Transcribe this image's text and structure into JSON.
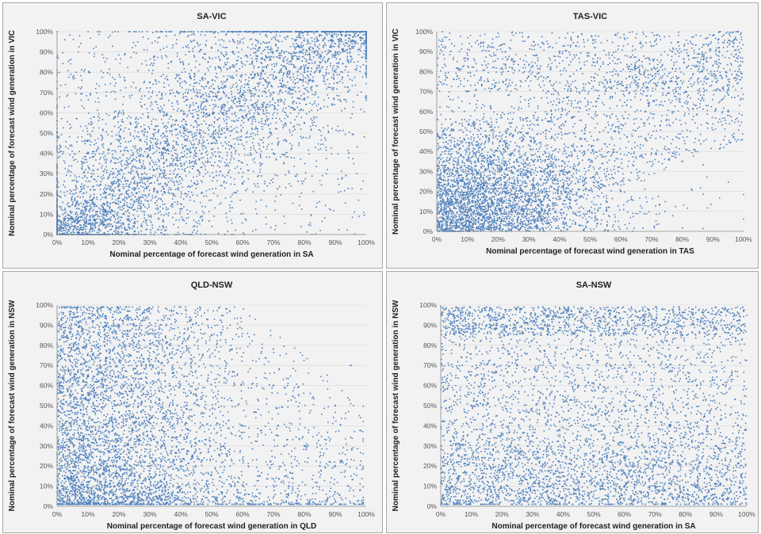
{
  "chart_data": [
    {
      "type": "scatter",
      "title": "SA-VIC",
      "xlabel": "Nominal percentage of forecast wind generation in SA",
      "ylabel": "Nominal percentage of forecast wind generation in VIC",
      "xlim": [
        0,
        100
      ],
      "ylim": [
        0,
        100
      ],
      "x_ticks": [
        "0%",
        "10%",
        "20%",
        "30%",
        "40%",
        "50%",
        "60%",
        "70%",
        "80%",
        "90%",
        "100%"
      ],
      "y_ticks": [
        "0%",
        "10%",
        "20%",
        "30%",
        "40%",
        "50%",
        "60%",
        "70%",
        "80%",
        "90%",
        "100%"
      ],
      "grid": true,
      "color": "#4f81bd",
      "pattern": "positive-correlation",
      "points": [
        [
          2,
          3
        ],
        [
          5,
          8
        ],
        [
          8,
          12
        ],
        [
          12,
          15
        ],
        [
          15,
          10
        ],
        [
          20,
          18
        ],
        [
          25,
          22
        ],
        [
          30,
          28
        ],
        [
          35,
          25
        ],
        [
          40,
          35
        ],
        [
          45,
          40
        ],
        [
          50,
          45
        ],
        [
          55,
          52
        ],
        [
          60,
          58
        ],
        [
          65,
          62
        ],
        [
          70,
          70
        ],
        [
          75,
          72
        ],
        [
          80,
          80
        ],
        [
          85,
          85
        ],
        [
          90,
          90
        ],
        [
          95,
          95
        ],
        [
          98,
          97
        ],
        [
          10,
          40
        ],
        [
          20,
          60
        ],
        [
          30,
          75
        ],
        [
          40,
          85
        ],
        [
          50,
          92
        ],
        [
          60,
          25
        ],
        [
          70,
          40
        ],
        [
          80,
          55
        ]
      ]
    },
    {
      "type": "scatter",
      "title": "TAS-VIC",
      "xlabel": "Nominal percentage of forecast wind generation in TAS",
      "ylabel": "Nominal percentage of forecast wind generation in VIC",
      "xlim": [
        0,
        100
      ],
      "ylim": [
        0,
        100
      ],
      "x_ticks": [
        "0%",
        "10%",
        "20%",
        "30%",
        "40%",
        "50%",
        "60%",
        "70%",
        "80%",
        "90%",
        "100%"
      ],
      "y_ticks": [
        "0%",
        "10%",
        "20%",
        "30%",
        "40%",
        "50%",
        "60%",
        "70%",
        "80%",
        "90%",
        "100%"
      ],
      "grid": true,
      "color": "#4f81bd",
      "pattern": "weak-positive",
      "points": [
        [
          3,
          5
        ],
        [
          8,
          15
        ],
        [
          12,
          25
        ],
        [
          18,
          10
        ],
        [
          22,
          35
        ],
        [
          28,
          20
        ],
        [
          32,
          45
        ],
        [
          38,
          30
        ],
        [
          42,
          55
        ],
        [
          48,
          40
        ],
        [
          52,
          65
        ],
        [
          58,
          50
        ],
        [
          62,
          72
        ],
        [
          68,
          60
        ],
        [
          72,
          80
        ],
        [
          78,
          70
        ],
        [
          82,
          88
        ],
        [
          88,
          85
        ],
        [
          92,
          92
        ],
        [
          97,
          96
        ],
        [
          10,
          70
        ],
        [
          25,
          85
        ],
        [
          40,
          90
        ],
        [
          60,
          20
        ],
        [
          80,
          35
        ],
        [
          95,
          60
        ]
      ]
    },
    {
      "type": "scatter",
      "title": "QLD-NSW",
      "xlabel": "Nominal percentage of forecast wind generation in QLD",
      "ylabel": "Nominal percentage of forecast wind generation in NSW",
      "xlim": [
        0,
        100
      ],
      "ylim": [
        0,
        100
      ],
      "x_ticks": [
        "0%",
        "10%",
        "20%",
        "30%",
        "40%",
        "50%",
        "60%",
        "70%",
        "80%",
        "90%",
        "100%"
      ],
      "y_ticks": [
        "0%",
        "10%",
        "20%",
        "30%",
        "40%",
        "50%",
        "60%",
        "70%",
        "80%",
        "90%",
        "100%"
      ],
      "grid": true,
      "color": "#4f81bd",
      "pattern": "concentrated-low-x",
      "points": [
        [
          5,
          10
        ],
        [
          10,
          30
        ],
        [
          15,
          60
        ],
        [
          20,
          90
        ],
        [
          25,
          15
        ],
        [
          30,
          45
        ],
        [
          35,
          75
        ],
        [
          40,
          20
        ],
        [
          45,
          55
        ],
        [
          50,
          85
        ],
        [
          55,
          25
        ],
        [
          60,
          40
        ],
        [
          65,
          15
        ],
        [
          70,
          60
        ],
        [
          75,
          10
        ],
        [
          80,
          30
        ],
        [
          85,
          20
        ],
        [
          90,
          50
        ],
        [
          95,
          70
        ],
        [
          98,
          8
        ]
      ]
    },
    {
      "type": "scatter",
      "title": "SA-NSW",
      "xlabel": "Nominal percentage of forecast wind generation in SA",
      "ylabel": "Nominal percentage of forecast wind generation in NSW",
      "xlim": [
        0,
        100
      ],
      "ylim": [
        0,
        100
      ],
      "x_ticks": [
        "0%",
        "10%",
        "20%",
        "30%",
        "40%",
        "50%",
        "60%",
        "70%",
        "80%",
        "90%",
        "100%"
      ],
      "y_ticks": [
        "0%",
        "10%",
        "20%",
        "30%",
        "40%",
        "50%",
        "60%",
        "70%",
        "80%",
        "90%",
        "100%"
      ],
      "grid": true,
      "color": "#4f81bd",
      "pattern": "uniform-spread",
      "points": [
        [
          3,
          8
        ],
        [
          10,
          50
        ],
        [
          15,
          90
        ],
        [
          20,
          20
        ],
        [
          25,
          70
        ],
        [
          30,
          35
        ],
        [
          35,
          95
        ],
        [
          40,
          15
        ],
        [
          45,
          60
        ],
        [
          50,
          40
        ],
        [
          55,
          85
        ],
        [
          60,
          25
        ],
        [
          65,
          55
        ],
        [
          70,
          10
        ],
        [
          75,
          75
        ],
        [
          80,
          45
        ],
        [
          85,
          92
        ],
        [
          90,
          30
        ],
        [
          95,
          65
        ],
        [
          99,
          97
        ]
      ]
    }
  ]
}
